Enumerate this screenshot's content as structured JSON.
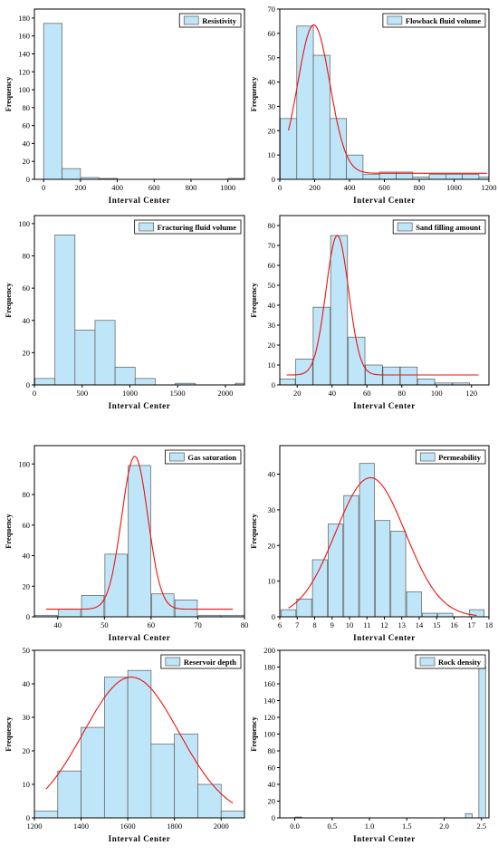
{
  "colors": {
    "bar_fill": "#bfe6f8",
    "bar_stroke": "#5a5a5a",
    "fit_curve": "#ee1111",
    "axis": "#000000"
  },
  "chart_data": [
    {
      "id": "resistivity",
      "type": "bar",
      "legend": "Resistivity",
      "legend_position": "top-right",
      "xlabel": "Interval Center",
      "ylabel": "Frequency",
      "xlim": [
        -50,
        1090
      ],
      "ylim": [
        0,
        190
      ],
      "xticks": [
        0,
        200,
        400,
        600,
        800,
        1000
      ],
      "yticks": [
        0,
        20,
        40,
        60,
        80,
        100,
        120,
        140,
        160,
        180
      ],
      "bin_width": 100,
      "x": [
        50,
        150,
        250,
        350,
        450,
        550,
        650,
        750,
        850,
        950,
        1050
      ],
      "values": [
        174,
        12,
        2,
        1,
        0,
        0,
        0,
        0,
        0,
        0,
        1
      ],
      "fit": null
    },
    {
      "id": "flowback",
      "type": "bar",
      "legend": "Flowback fluid volume",
      "legend_position": "top-right",
      "xlabel": "Interval Center",
      "ylabel": "Frequency",
      "xlim": [
        0,
        1200
      ],
      "ylim": [
        0,
        70
      ],
      "xticks": [
        0,
        200,
        400,
        600,
        800,
        1000,
        1200
      ],
      "yticks": [
        0,
        10,
        20,
        30,
        40,
        50,
        60,
        70
      ],
      "bin_width": 95,
      "x": [
        50,
        145,
        240,
        335,
        430,
        525,
        620,
        715,
        810,
        905,
        1000,
        1095,
        1190
      ],
      "values": [
        25,
        63,
        51,
        25,
        10,
        2,
        3,
        3,
        1,
        2,
        2,
        2,
        1
      ],
      "fit": {
        "a": 61,
        "mu": 195,
        "sigma": 92,
        "c": 2.5
      }
    },
    {
      "id": "fracturing",
      "type": "bar",
      "legend": "Fracturing fluid volume",
      "legend_position": "top-right",
      "xlabel": "Interval Center",
      "ylabel": "Frequency",
      "xlim": [
        0,
        2200
      ],
      "ylim": [
        0,
        105
      ],
      "xticks": [
        0,
        500,
        1000,
        1500,
        2000
      ],
      "yticks": [
        0,
        20,
        40,
        60,
        80,
        100
      ],
      "bin_width": 210,
      "x": [
        110,
        320,
        530,
        740,
        950,
        1160,
        1370,
        1580,
        1790,
        2000,
        2210
      ],
      "values": [
        4,
        93,
        34,
        40,
        11,
        4,
        0,
        1,
        0,
        0,
        1
      ],
      "fit": null
    },
    {
      "id": "sand",
      "type": "bar",
      "legend": "Sand filling amount",
      "legend_position": "top-right",
      "xlabel": "Interval Center",
      "ylabel": "Frequency",
      "xlim": [
        10,
        130
      ],
      "ylim": [
        0,
        85
      ],
      "xticks": [
        20,
        40,
        60,
        80,
        100,
        120
      ],
      "yticks": [
        0,
        10,
        20,
        30,
        40,
        50,
        60,
        70,
        80
      ],
      "bin_width": 9.7,
      "x": [
        14,
        24,
        34,
        44,
        54,
        64,
        74,
        84,
        94,
        104,
        114,
        124
      ],
      "values": [
        3,
        13,
        39,
        75,
        24,
        10,
        9,
        9,
        3,
        1,
        1,
        0
      ],
      "fit": {
        "a": 70,
        "mu": 43,
        "sigma": 6.5,
        "c": 5
      }
    },
    {
      "id": "gas",
      "type": "bar",
      "legend": "Gas saturation",
      "legend_position": "top-right",
      "xlabel": "Interval Center",
      "ylabel": "Frequency",
      "xlim": [
        35,
        80
      ],
      "ylim": [
        0,
        112
      ],
      "xticks": [
        40,
        50,
        60,
        70,
        80
      ],
      "yticks": [
        0,
        20,
        40,
        60,
        80,
        100
      ],
      "bin_width": 4.8,
      "x": [
        37.5,
        42.5,
        47.5,
        52.5,
        57.5,
        62.5,
        67.5,
        72.5,
        77.5
      ],
      "values": [
        1,
        5,
        14,
        41,
        99,
        15,
        11,
        1,
        1
      ],
      "fit": {
        "a": 100,
        "mu": 56.5,
        "sigma": 2.8,
        "c": 5
      }
    },
    {
      "id": "permeability",
      "type": "bar",
      "legend": "Permeability",
      "legend_position": "top-right",
      "xlabel": "Interval Center",
      "ylabel": "Frequency",
      "xlim": [
        6,
        18
      ],
      "ylim": [
        0,
        48
      ],
      "xticks": [
        6,
        7,
        8,
        9,
        10,
        11,
        12,
        13,
        14,
        15,
        16,
        17,
        18
      ],
      "yticks": [
        0,
        10,
        20,
        30,
        40
      ],
      "bin_width": 0.85,
      "x": [
        6.5,
        7.4,
        8.3,
        9.2,
        10.1,
        11.0,
        11.9,
        12.8,
        13.7,
        14.6,
        15.5,
        16.4,
        17.3
      ],
      "values": [
        2,
        5,
        16,
        26,
        34,
        43,
        27,
        24,
        7,
        1,
        1,
        0,
        2
      ],
      "fit": {
        "a": 39,
        "mu": 11.2,
        "sigma": 2.0,
        "c": 0
      }
    },
    {
      "id": "depth",
      "type": "bar",
      "legend": "Reservoir depth",
      "legend_position": "top-right",
      "xlabel": "Interval Center",
      "ylabel": "Frequency",
      "xlim": [
        1200,
        2100
      ],
      "ylim": [
        0,
        50
      ],
      "xticks": [
        1200,
        1400,
        1600,
        1800,
        2000
      ],
      "yticks": [
        0,
        10,
        20,
        30,
        40,
        50
      ],
      "bin_width": 100,
      "x": [
        1250,
        1350,
        1450,
        1550,
        1650,
        1750,
        1850,
        1950,
        2050
      ],
      "values": [
        2,
        14,
        27,
        42,
        44,
        22,
        25,
        10,
        2
      ],
      "fit": {
        "a": 42,
        "mu": 1615,
        "sigma": 205,
        "c": 0
      }
    },
    {
      "id": "rock",
      "type": "bar",
      "legend": "Rock density",
      "legend_position": "top-right",
      "xlabel": "Interval Center",
      "ylabel": "Frequency",
      "xlim": [
        -0.2,
        2.6
      ],
      "ylim": [
        0,
        200
      ],
      "xticks": [
        0.0,
        0.5,
        1.0,
        1.5,
        2.0,
        2.5
      ],
      "yticks": [
        0,
        20,
        40,
        60,
        80,
        100,
        120,
        140,
        160,
        180,
        200
      ],
      "tick_decimals": 1,
      "bin_width": 0.09,
      "x": [
        0.05,
        2.33,
        2.51
      ],
      "values": [
        1,
        5,
        181
      ],
      "fit": null
    }
  ]
}
